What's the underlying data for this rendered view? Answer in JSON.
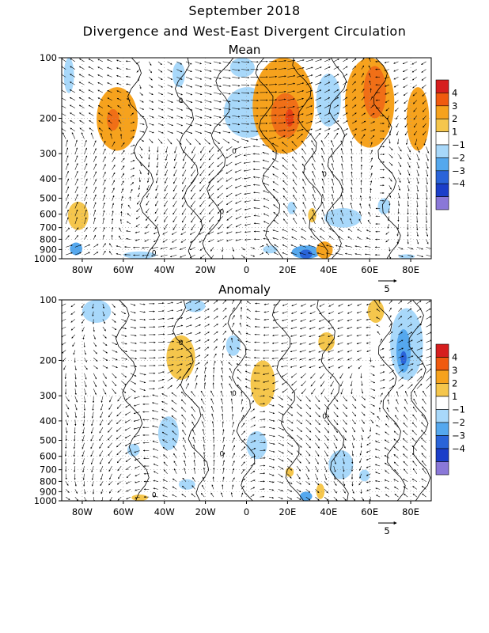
{
  "title": "September 2018",
  "subtitle": "Divergence and West-East Divergent Circulation",
  "chart_data": [
    {
      "type": "heatmap",
      "title": "Mean",
      "x_ticks": [
        "80W",
        "60W",
        "40W",
        "20W",
        "0",
        "20E",
        "40E",
        "60E",
        "80E"
      ],
      "y_ticks": [
        "100",
        "200",
        "300",
        "400",
        "500",
        "600",
        "700",
        "800",
        "900",
        "1000"
      ],
      "x_range": [
        -90,
        90
      ],
      "y_range_hPa": [
        1000,
        100
      ],
      "y_scale": "log",
      "grid": "dotted",
      "contour_label": "0",
      "vector_reference": "5",
      "regions": [
        {
          "sign": 2,
          "lon": [
            -73,
            -53
          ],
          "p": [
            140,
            290
          ]
        },
        {
          "sign": 3,
          "lon": [
            -68,
            -62
          ],
          "p": [
            180,
            230
          ]
        },
        {
          "sign": 1,
          "lon": [
            -87,
            -77
          ],
          "p": [
            520,
            720
          ]
        },
        {
          "sign": -1,
          "lon": [
            -89,
            -84
          ],
          "p": [
            100,
            150
          ]
        },
        {
          "sign": -1,
          "lon": [
            -36,
            -30
          ],
          "p": [
            105,
            140
          ]
        },
        {
          "sign": -1,
          "lon": [
            -8,
            4
          ],
          "p": [
            100,
            125
          ]
        },
        {
          "sign": -1,
          "lon": [
            -11,
            12
          ],
          "p": [
            140,
            250
          ]
        },
        {
          "sign": 2,
          "lon": [
            3,
            33
          ],
          "p": [
            100,
            300
          ]
        },
        {
          "sign": 3,
          "lon": [
            12,
            26
          ],
          "p": [
            150,
            250
          ]
        },
        {
          "sign": 4,
          "lon": [
            19,
            23
          ],
          "p": [
            180,
            220
          ]
        },
        {
          "sign": -1,
          "lon": [
            34,
            46
          ],
          "p": [
            120,
            220
          ]
        },
        {
          "sign": 2,
          "lon": [
            48,
            72
          ],
          "p": [
            100,
            280
          ]
        },
        {
          "sign": 3,
          "lon": [
            57,
            68
          ],
          "p": [
            110,
            200
          ]
        },
        {
          "sign": 2,
          "lon": [
            78,
            89
          ],
          "p": [
            140,
            290
          ]
        },
        {
          "sign": -1,
          "lon": [
            20,
            24
          ],
          "p": [
            520,
            600
          ]
        },
        {
          "sign": 1,
          "lon": [
            30,
            34
          ],
          "p": [
            560,
            660
          ]
        },
        {
          "sign": -1,
          "lon": [
            38,
            56
          ],
          "p": [
            560,
            700
          ]
        },
        {
          "sign": -1,
          "lon": [
            64,
            70
          ],
          "p": [
            500,
            600
          ]
        },
        {
          "sign": -2,
          "lon": [
            -86,
            -80
          ],
          "p": [
            830,
            960
          ]
        },
        {
          "sign": -1,
          "lon": [
            -60,
            -44
          ],
          "p": [
            920,
            1000
          ]
        },
        {
          "sign": -1,
          "lon": [
            8,
            15
          ],
          "p": [
            860,
            940
          ]
        },
        {
          "sign": -2,
          "lon": [
            22,
            36
          ],
          "p": [
            860,
            1000
          ]
        },
        {
          "sign": -3,
          "lon": [
            26,
            32
          ],
          "p": [
            900,
            1000
          ]
        },
        {
          "sign": 2,
          "lon": [
            34,
            42
          ],
          "p": [
            820,
            1000
          ]
        },
        {
          "sign": -1,
          "lon": [
            74,
            82
          ],
          "p": [
            950,
            1000
          ]
        }
      ]
    },
    {
      "type": "heatmap",
      "title": "Anomaly",
      "x_ticks": [
        "80W",
        "60W",
        "40W",
        "20W",
        "0",
        "20E",
        "40E",
        "60E",
        "80E"
      ],
      "y_ticks": [
        "100",
        "200",
        "300",
        "400",
        "500",
        "600",
        "700",
        "800",
        "900",
        "1000"
      ],
      "x_range": [
        -90,
        90
      ],
      "y_range_hPa": [
        1000,
        100
      ],
      "y_scale": "log",
      "grid": "dotted",
      "contour_label": "0",
      "vector_reference": "5",
      "regions": [
        {
          "sign": -1,
          "lon": [
            -80,
            -66
          ],
          "p": [
            100,
            130
          ]
        },
        {
          "sign": -1,
          "lon": [
            -30,
            -20
          ],
          "p": [
            100,
            115
          ]
        },
        {
          "sign": 1,
          "lon": [
            -39,
            -25
          ],
          "p": [
            150,
            250
          ]
        },
        {
          "sign": -1,
          "lon": [
            -10,
            -3
          ],
          "p": [
            150,
            190
          ]
        },
        {
          "sign": 1,
          "lon": [
            2,
            14
          ],
          "p": [
            200,
            340
          ]
        },
        {
          "sign": 1,
          "lon": [
            35,
            43
          ],
          "p": [
            145,
            180
          ]
        },
        {
          "sign": 1,
          "lon": [
            59,
            67
          ],
          "p": [
            100,
            130
          ]
        },
        {
          "sign": -1,
          "lon": [
            70,
            86
          ],
          "p": [
            110,
            250
          ]
        },
        {
          "sign": -2,
          "lon": [
            73,
            80
          ],
          "p": [
            140,
            230
          ]
        },
        {
          "sign": -3,
          "lon": [
            75,
            78
          ],
          "p": [
            180,
            210
          ]
        },
        {
          "sign": -1,
          "lon": [
            -43,
            -33
          ],
          "p": [
            380,
            560
          ]
        },
        {
          "sign": -1,
          "lon": [
            -58,
            -52
          ],
          "p": [
            520,
            600
          ]
        },
        {
          "sign": -1,
          "lon": [
            0,
            10
          ],
          "p": [
            450,
            620
          ]
        },
        {
          "sign": -1,
          "lon": [
            40,
            52
          ],
          "p": [
            560,
            780
          ]
        },
        {
          "sign": -1,
          "lon": [
            55,
            60
          ],
          "p": [
            700,
            800
          ]
        },
        {
          "sign": 1,
          "lon": [
            19,
            23
          ],
          "p": [
            680,
            760
          ]
        },
        {
          "sign": 1,
          "lon": [
            -56,
            -48
          ],
          "p": [
            930,
            1000
          ]
        },
        {
          "sign": -1,
          "lon": [
            -33,
            -25
          ],
          "p": [
            780,
            880
          ]
        },
        {
          "sign": -2,
          "lon": [
            26,
            32
          ],
          "p": [
            900,
            1000
          ]
        },
        {
          "sign": 1,
          "lon": [
            34,
            38
          ],
          "p": [
            820,
            980
          ]
        }
      ]
    }
  ],
  "colorbar": {
    "labels": [
      "4",
      "3",
      "2",
      "1",
      "−1",
      "−2",
      "−3",
      "−4"
    ],
    "colors": [
      "#d61e1e",
      "#f05a0f",
      "#f6a21d",
      "#f5c64c",
      "#ffffff",
      "#a8d8fa",
      "#55a8ee",
      "#2a64d9",
      "#1b3ec9",
      "#8a78d8"
    ]
  },
  "palette": {
    "pos1": "#f5c64c",
    "pos2": "#f6a21d",
    "pos3": "#f06f17",
    "pos4": "#e63f12",
    "neg1": "#a8d8fa",
    "neg2": "#55a8ee",
    "neg3": "#2a64d9"
  }
}
